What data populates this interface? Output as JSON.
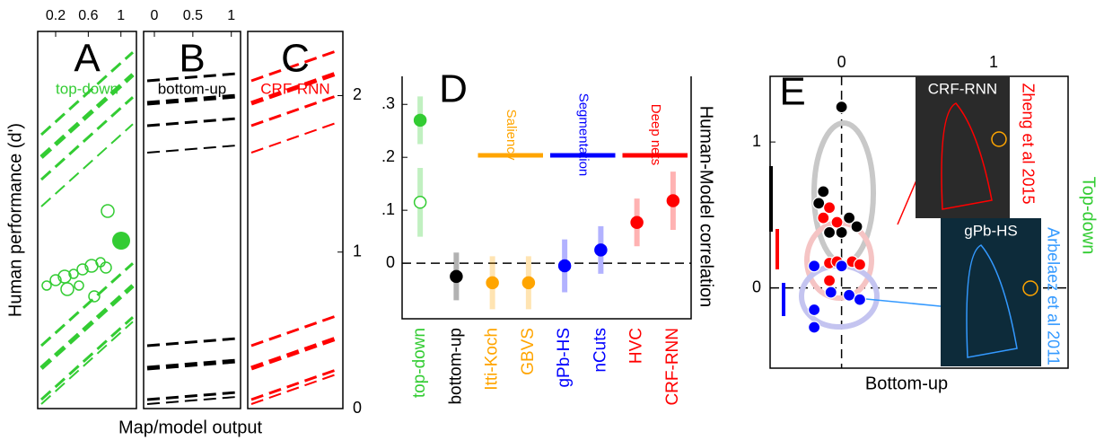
{
  "chart_data": [
    {
      "type": "strip-panels",
      "ylabel": "Human performance (d')",
      "xlabel": "Map/model output",
      "y2lim": [
        0,
        2.41
      ],
      "y2ticks": [
        0,
        1,
        2
      ],
      "panels": [
        {
          "label": "A",
          "name": "top-down",
          "color": "#33cc33",
          "xlim": [
            -0.02,
            1.19
          ],
          "xticks": [
            0.2,
            0.6,
            1
          ]
        },
        {
          "label": "B",
          "name": "bottom-up",
          "color": "#000000",
          "xlim": [
            -0.14,
            1.12
          ],
          "xticks": [
            0,
            0.5,
            1
          ]
        },
        {
          "label": "C",
          "name": "CRF-RNN",
          "color": "#ff0000"
        }
      ]
    },
    {
      "type": "dot",
      "title": "D",
      "ylabel": "Human-Model correlation",
      "categories": [
        "top-down",
        "bottom-up",
        "Itti-Koch",
        "GBVS",
        "gPb-HS",
        "nCuts",
        "HVC",
        "CRF-RNN"
      ],
      "colors": [
        "#33cc33",
        "#000000",
        "#ffa500",
        "#ffa500",
        "#0000ff",
        "#0000ff",
        "#ff0000",
        "#ff0000"
      ],
      "series": [
        {
          "values": [
            0.27,
            -0.025,
            -0.037,
            -0.037,
            -0.005,
            0.025,
            0.077,
            0.118
          ],
          "errors": [
            0.045,
            0.045,
            0.05,
            0.05,
            0.05,
            0.045,
            0.045,
            0.055
          ]
        },
        {
          "values": [
            0.115,
            null,
            null,
            null,
            null,
            null,
            null,
            null
          ],
          "errors": [
            0.065,
            null,
            null,
            null,
            null,
            null,
            null,
            null
          ]
        }
      ],
      "ylim": [
        -0.105,
        0.353
      ],
      "yticks": [
        {
          "value": 0,
          "label": "0"
        },
        {
          "value": 0.1,
          "label": ".1"
        },
        {
          "value": 0.2,
          "label": ".2"
        },
        {
          "value": 0.3,
          "label": ".3"
        }
      ],
      "groups": [
        {
          "name": "Saliency",
          "color": "#ffa500",
          "from": 2,
          "to": 3
        },
        {
          "name": "Segmentation",
          "color": "#0000ff",
          "from": 4,
          "to": 5
        },
        {
          "name": "Deep nets",
          "color": "#ff0000",
          "from": 6,
          "to": 7
        }
      ]
    },
    {
      "type": "scatter",
      "title": "E",
      "xlabel": "Bottom-up",
      "ylabel": "Top-down",
      "xlim": [
        -0.47,
        1.49
      ],
      "ylim": [
        -0.55,
        1.45
      ],
      "xticks": [
        0,
        1
      ],
      "yticks": [
        0,
        1
      ],
      "series": [
        {
          "color": "#000000",
          "x": [
            0.0,
            -0.12,
            -0.15,
            0.05,
            0.1,
            -0.08,
            0.0
          ],
          "y": [
            1.24,
            0.66,
            0.58,
            0.48,
            0.42,
            0.38,
            0.38
          ]
        },
        {
          "color": "#ff0000",
          "x": [
            -0.08,
            -0.03,
            -0.12,
            0.07,
            0.12,
            -0.08,
            -0.03,
            -0.08
          ],
          "y": [
            0.55,
            0.45,
            0.48,
            0.18,
            0.16,
            0.17,
            0.18,
            0.05
          ]
        },
        {
          "color": "#0000ff",
          "x": [
            -0.18,
            0.0,
            -0.07,
            0.05,
            0.12,
            -0.18,
            -0.18
          ],
          "y": [
            0.15,
            0.15,
            -0.03,
            -0.05,
            -0.08,
            -0.15,
            -0.27
          ]
        }
      ],
      "insets": [
        {
          "label": "CRF-RNN",
          "source": "Zheng et al 2015",
          "color": "#ff0000"
        },
        {
          "label": "gPb-HS",
          "source": "Arbelaez et al 2011",
          "color": "#3399ff"
        }
      ]
    }
  ]
}
